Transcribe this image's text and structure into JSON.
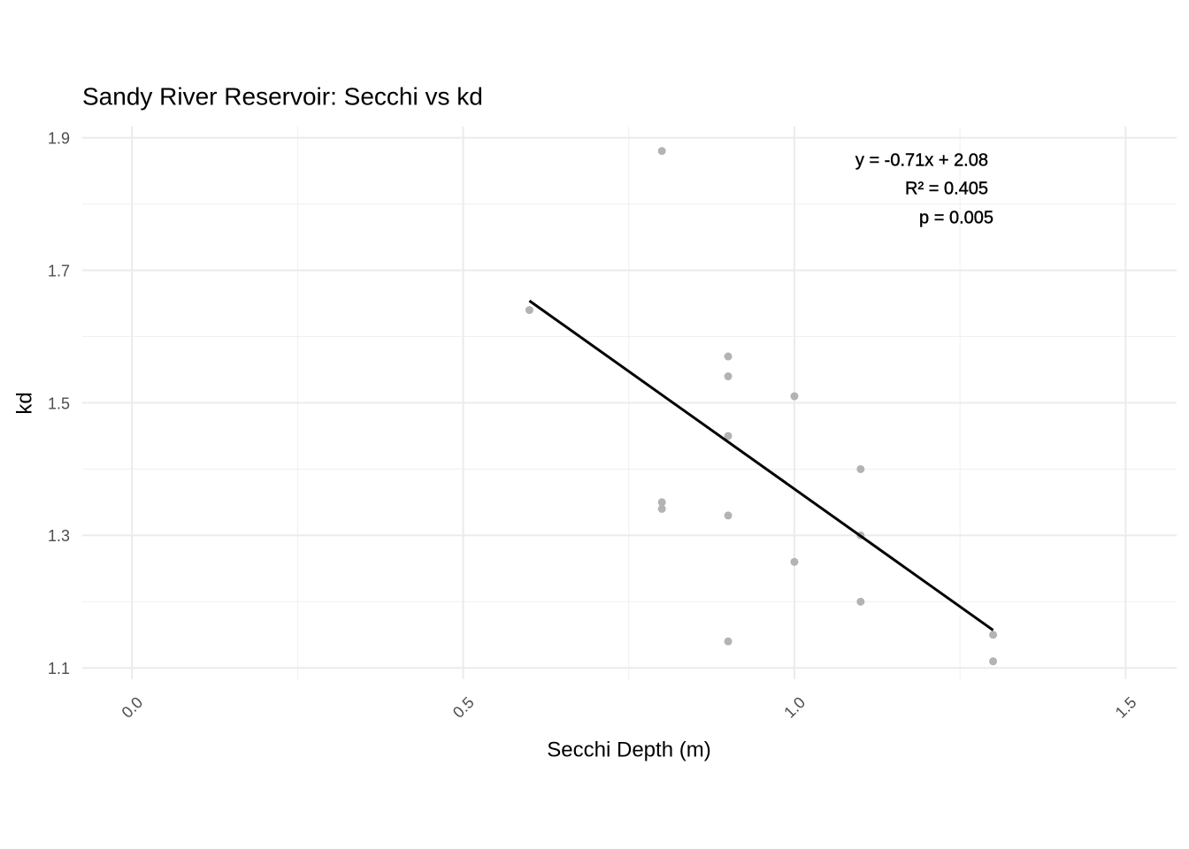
{
  "chart_data": {
    "type": "scatter",
    "title": "Sandy River Reservoir: Secchi vs kd",
    "x_label": "Secchi Depth (m)",
    "y_label": "kd",
    "x": [
      0.6,
      0.8,
      0.8,
      0.8,
      0.9,
      0.9,
      0.9,
      0.9,
      0.9,
      1.0,
      1.0,
      1.1,
      1.1,
      1.1,
      1.3,
      1.3
    ],
    "values": [
      1.64,
      1.88,
      1.35,
      1.34,
      1.57,
      1.54,
      1.45,
      1.33,
      1.14,
      1.51,
      1.26,
      1.4,
      1.3,
      1.2,
      1.15,
      1.11
    ],
    "color": "#b3b3b3",
    "fit": {
      "x": [
        0.6,
        1.3
      ],
      "values": [
        1.654,
        1.157
      ],
      "color": "#000000"
    },
    "annotations": [
      "y = -0.71x + 2.08",
      "R² = 0.405",
      "p = 0.005"
    ],
    "xlim": [
      -0.075,
      1.577
    ],
    "ylim": [
      1.083,
      1.917
    ],
    "xticks": [
      {
        "value": 0,
        "label": "0.0"
      },
      0.5,
      {
        "value": 1,
        "label": "1.0"
      },
      1.5
    ],
    "yticks": [
      1.1,
      1.3,
      1.5,
      1.7,
      1.9
    ],
    "xminor": [
      0.25,
      0.75,
      1.25
    ],
    "yminor": [
      1.2,
      1.4,
      1.6,
      1.8
    ],
    "grid": true
  }
}
